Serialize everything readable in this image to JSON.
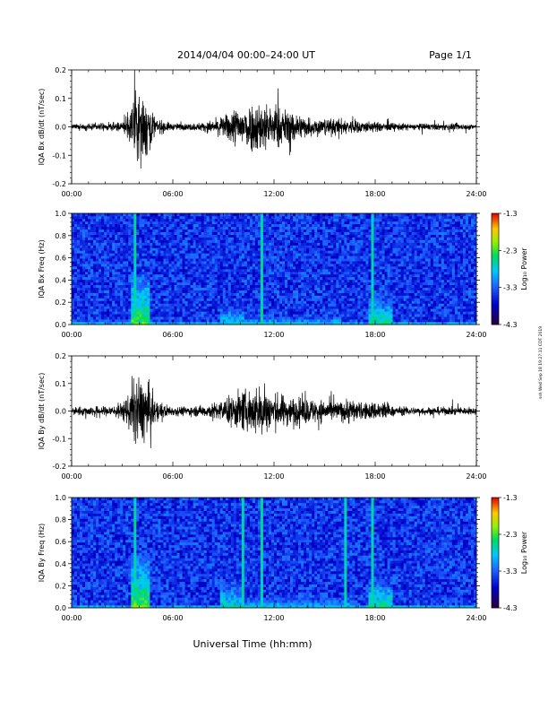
{
  "header": {
    "title": "2014/04/04   00:00–24:00 UT",
    "page": "Page 1/1"
  },
  "side_stamp": "ssh Wed Sep 18 19:27:11 CDT 2019",
  "xaxis": {
    "label": "Universal Time (hh:mm)",
    "ticks": [
      "00:00",
      "06:00",
      "12:00",
      "18:00",
      "24:00"
    ],
    "range_hours": [
      0,
      24
    ]
  },
  "colorbar": {
    "label": "Log₁₀ Power",
    "ticks": [
      "-1.3",
      "-2.3",
      "-3.3",
      "-4.3"
    ],
    "range": [
      -4.3,
      -1.3
    ]
  },
  "chart_data": [
    {
      "type": "line",
      "ylabel": "IQA Bx dB/dt (nT/sec)",
      "yticks": [
        "0.2",
        "0.1",
        "0.0",
        "-0.1",
        "-0.2"
      ],
      "ylim": [
        -0.2,
        0.2
      ],
      "x_hours": [
        0,
        1,
        2,
        3,
        3.5,
        3.8,
        4.1,
        4.4,
        5,
        6,
        7,
        8,
        9,
        9.5,
        10,
        10.5,
        11,
        11.5,
        12,
        13,
        14,
        15,
        16,
        17,
        18,
        19,
        20,
        21,
        22,
        23,
        24
      ],
      "envelope": [
        0.015,
        0.02,
        0.02,
        0.03,
        0.1,
        0.21,
        0.21,
        0.2,
        0.05,
        0.02,
        0.02,
        0.03,
        0.06,
        0.11,
        0.13,
        0.14,
        0.16,
        0.15,
        0.12,
        0.1,
        0.06,
        0.05,
        0.05,
        0.04,
        0.03,
        0.025,
        0.02,
        0.02,
        0.02,
        0.02,
        0.015
      ]
    },
    {
      "type": "heatmap",
      "ylabel": "IQA Bx Freq (Hz)",
      "yticks": [
        "1.0",
        "0.8",
        "0.6",
        "0.4",
        "0.2",
        "0.0"
      ],
      "ylim": [
        0,
        1.0
      ],
      "features": [
        {
          "start_hour": 3.5,
          "end_hour": 4.6,
          "max_freq_hz": 0.45,
          "level": -2.3
        },
        {
          "start_hour": 8.8,
          "end_hour": 10.2,
          "max_freq_hz": 0.2,
          "level": -2.8
        },
        {
          "start_hour": 10.2,
          "end_hour": 16.0,
          "max_freq_hz": 0.08,
          "level": -2.8
        },
        {
          "start_hour": 17.6,
          "end_hour": 19.0,
          "max_freq_hz": 0.25,
          "level": -2.5
        }
      ],
      "lines_hours": [
        3.8,
        11.3,
        17.8
      ]
    },
    {
      "type": "line",
      "ylabel": "IQA By dB/dt (nT/sec)",
      "yticks": [
        "0.2",
        "0.1",
        "0.0",
        "-0.1",
        "-0.2"
      ],
      "ylim": [
        -0.2,
        0.2
      ],
      "x_hours": [
        0,
        1,
        2,
        3,
        3.5,
        3.8,
        4.1,
        4.4,
        5,
        6,
        7,
        8,
        9,
        9.5,
        10,
        10.5,
        11,
        11.5,
        12,
        13,
        14,
        15,
        16,
        16.5,
        17,
        18,
        18.5,
        19,
        20,
        21,
        22,
        23,
        24
      ],
      "envelope": [
        0.025,
        0.03,
        0.03,
        0.05,
        0.13,
        0.21,
        0.21,
        0.2,
        0.06,
        0.03,
        0.03,
        0.04,
        0.07,
        0.1,
        0.13,
        0.13,
        0.16,
        0.15,
        0.11,
        0.09,
        0.08,
        0.07,
        0.06,
        0.09,
        0.05,
        0.06,
        0.07,
        0.03,
        0.025,
        0.025,
        0.025,
        0.025,
        0.02
      ]
    },
    {
      "type": "heatmap",
      "ylabel": "IQA By Freq (Hz)",
      "yticks": [
        "1.0",
        "0.8",
        "0.6",
        "0.4",
        "0.2",
        "0.0"
      ],
      "ylim": [
        0,
        1.0
      ],
      "features": [
        {
          "start_hour": 3.5,
          "end_hour": 4.6,
          "max_freq_hz": 0.5,
          "level": -2.3
        },
        {
          "start_hour": 8.8,
          "end_hour": 10.2,
          "max_freq_hz": 0.25,
          "level": -2.7
        },
        {
          "start_hour": 10.2,
          "end_hour": 16.0,
          "max_freq_hz": 0.1,
          "level": -2.8
        },
        {
          "start_hour": 16.0,
          "end_hour": 16.8,
          "max_freq_hz": 0.12,
          "level": -2.9
        },
        {
          "start_hour": 17.6,
          "end_hour": 19.0,
          "max_freq_hz": 0.25,
          "level": -2.5
        }
      ],
      "lines_hours": [
        3.8,
        10.2,
        11.3,
        16.3,
        17.8
      ]
    }
  ]
}
